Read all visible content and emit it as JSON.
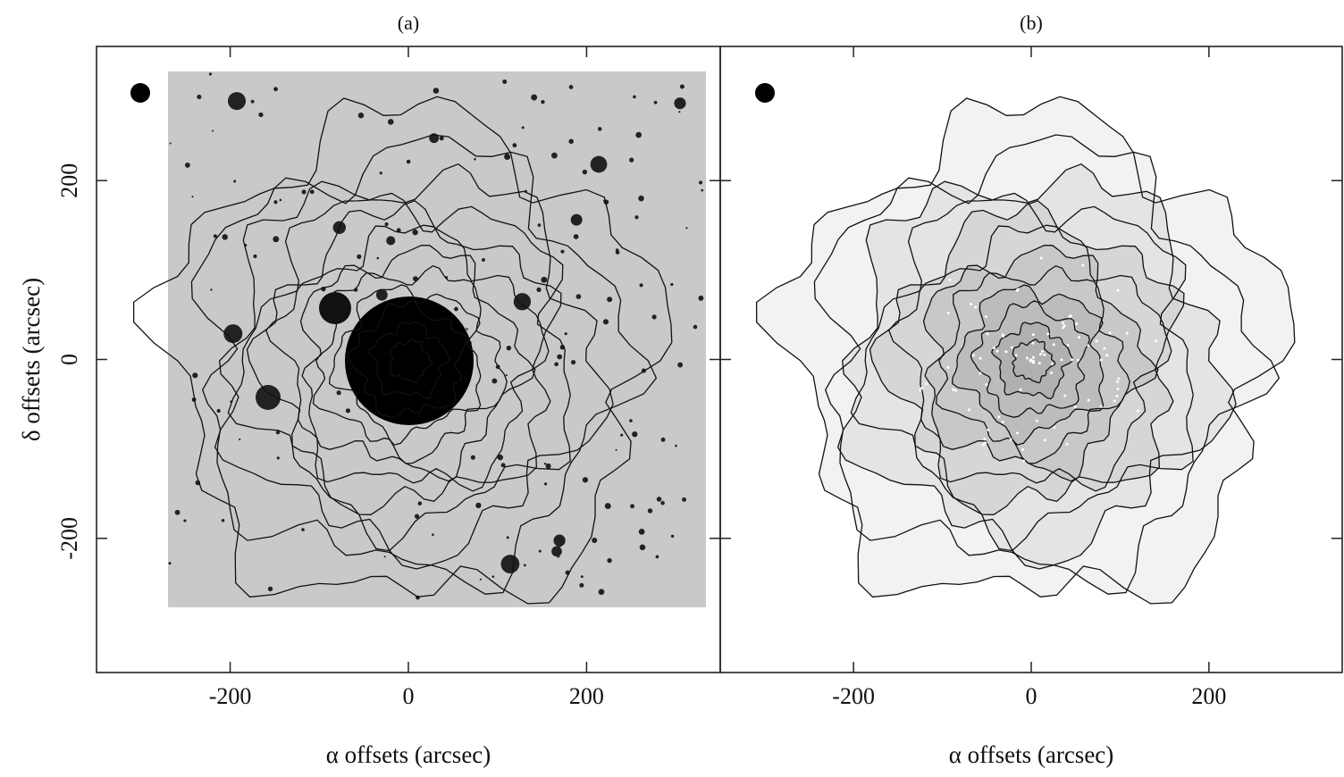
{
  "chart_data": [
    {
      "type": "contour-image",
      "title": "(a)",
      "xlabel": "α offsets (arcsec)",
      "ylabel": "δ offsets (arcsec)",
      "xlim": [
        -350,
        350
      ],
      "ylim": [
        -350,
        350
      ],
      "xticks": [
        -200,
        0,
        200
      ],
      "yticks": [
        -200,
        0,
        200
      ],
      "show_ytick_labels": true
    },
    {
      "type": "contour-image",
      "title": "(b)",
      "xlabel": "α offsets (arcsec)",
      "xlim": [
        -350,
        350
      ],
      "ylim": [
        -350,
        350
      ],
      "xticks": [
        -200,
        0,
        200
      ],
      "yticks": [
        -200,
        0,
        200
      ],
      "show_ytick_labels": false
    }
  ]
}
